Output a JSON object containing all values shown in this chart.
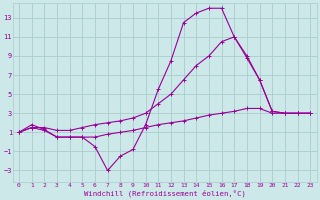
{
  "xlabel": "Windchill (Refroidissement éolien,°C)",
  "bg_color": "#cce8e8",
  "grid_color": "#aacccc",
  "line_color": "#990099",
  "xlim": [
    -0.5,
    23.5
  ],
  "ylim": [
    -4.2,
    14.5
  ],
  "xticks": [
    0,
    1,
    2,
    3,
    4,
    5,
    6,
    7,
    8,
    9,
    10,
    11,
    12,
    13,
    14,
    15,
    16,
    17,
    18,
    19,
    20,
    21,
    22,
    23
  ],
  "yticks": [
    -3,
    -1,
    1,
    3,
    5,
    7,
    9,
    11,
    13
  ],
  "curve1_x": [
    0,
    1,
    2,
    3,
    4,
    5,
    6,
    7,
    8,
    9,
    10,
    11,
    12,
    13,
    14,
    15,
    16,
    17,
    18,
    19,
    20,
    21,
    22,
    23
  ],
  "curve1_y": [
    1.0,
    1.8,
    1.3,
    0.5,
    0.5,
    0.5,
    -0.5,
    -3.0,
    -1.5,
    -0.8,
    1.8,
    5.5,
    8.5,
    12.5,
    13.5,
    14.0,
    14.0,
    11.0,
    8.8,
    6.5,
    3.2,
    3.0,
    3.0,
    3.0
  ],
  "curve2_x": [
    0,
    1,
    2,
    3,
    4,
    5,
    6,
    7,
    8,
    9,
    10,
    11,
    12,
    13,
    14,
    15,
    16,
    17,
    18,
    19,
    20,
    21,
    22,
    23
  ],
  "curve2_y": [
    1.0,
    1.5,
    1.5,
    1.2,
    1.2,
    1.5,
    1.8,
    2.0,
    2.2,
    2.5,
    3.0,
    4.0,
    5.0,
    6.5,
    8.0,
    9.0,
    10.5,
    11.0,
    9.0,
    6.5,
    3.2,
    3.0,
    3.0,
    3.0
  ],
  "curve3_x": [
    0,
    1,
    2,
    3,
    4,
    5,
    6,
    7,
    8,
    9,
    10,
    11,
    12,
    13,
    14,
    15,
    16,
    17,
    18,
    19,
    20,
    21,
    22,
    23
  ],
  "curve3_y": [
    1.0,
    1.5,
    1.2,
    0.5,
    0.5,
    0.5,
    0.5,
    0.8,
    1.0,
    1.2,
    1.5,
    1.8,
    2.0,
    2.2,
    2.5,
    2.8,
    3.0,
    3.2,
    3.5,
    3.5,
    3.0,
    3.0,
    3.0,
    3.0
  ]
}
